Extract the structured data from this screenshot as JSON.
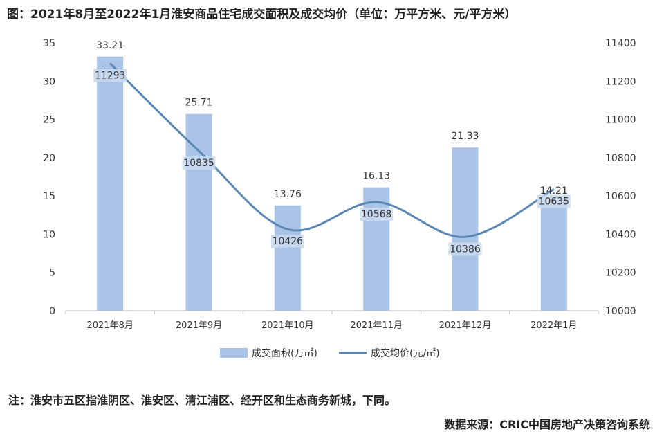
{
  "title": "图：2021年8月至2022年1月淮安商品住宅成交面积及成交均价（单位：万平方米、元/平方米）",
  "note": "注：淮安市五区指淮阴区、淮安区、清江浦区、经开区和生态商务新城，下同。",
  "source": "数据来源：CRIC中国房地产决策咨询系统",
  "colors": {
    "bar": "#a9c4e6",
    "line": "#5b87b5",
    "axis": "#bfbfbf"
  },
  "chart_data": {
    "type": "bar",
    "categories": [
      "2021年8月",
      "2021年9月",
      "2021年10月",
      "2021年11月",
      "2021年12月",
      "2022年1月"
    ],
    "series": [
      {
        "name": "成交面积(万㎡)",
        "type": "bar",
        "axis": "left",
        "values": [
          33.21,
          25.71,
          13.76,
          16.13,
          21.33,
          14.21
        ],
        "labels": [
          "33.21",
          "25.71",
          "13.76",
          "16.13",
          "21.33",
          "14.21"
        ]
      },
      {
        "name": "成交均价(元/㎡)",
        "type": "line",
        "axis": "right",
        "values": [
          11293,
          10835,
          10426,
          10568,
          10386,
          10635
        ],
        "labels": [
          "11293",
          "10835",
          "10426",
          "10568",
          "10386",
          "10635"
        ]
      }
    ],
    "left_axis": {
      "min": 0,
      "max": 35,
      "ticks": [
        "0",
        "5",
        "10",
        "15",
        "20",
        "25",
        "30",
        "35"
      ]
    },
    "right_axis": {
      "min": 10000,
      "max": 11400,
      "ticks": [
        "10000",
        "10200",
        "10400",
        "10600",
        "10800",
        "11000",
        "11200",
        "11400"
      ]
    },
    "legend_position": "bottom",
    "grid": false
  }
}
